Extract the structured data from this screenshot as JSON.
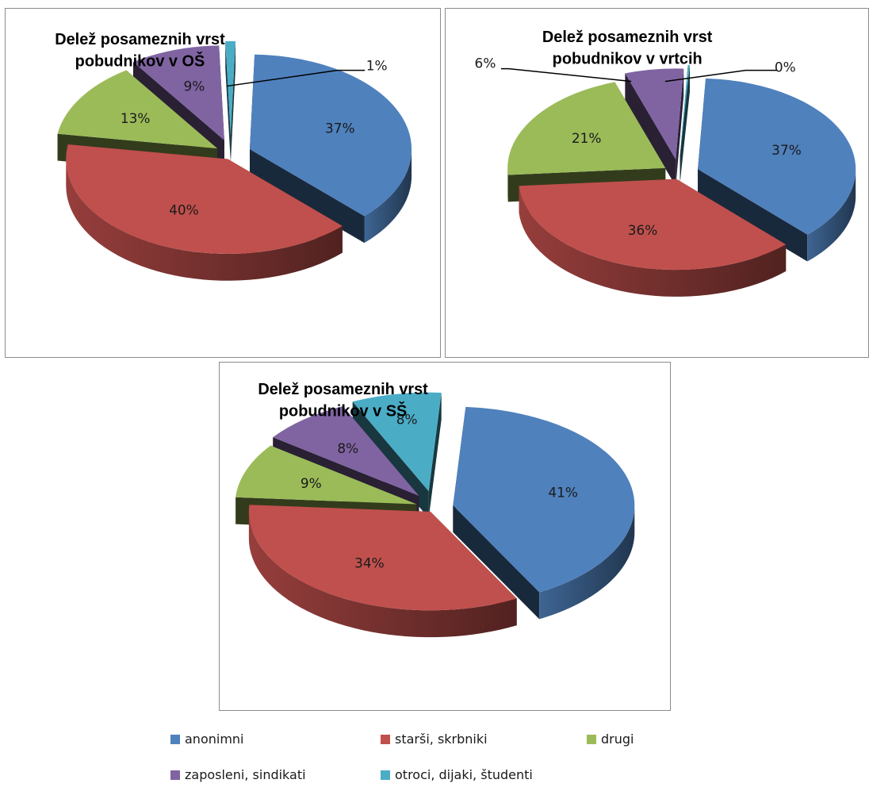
{
  "legend": [
    {
      "name": "anonimni",
      "color": "#4F81BD"
    },
    {
      "name": "starši, skrbniki",
      "color": "#C0504D"
    },
    {
      "name": "drugi",
      "color": "#9BBB59"
    },
    {
      "name": "zaposleni, sindikati",
      "color": "#8064A2"
    },
    {
      "name": "otroci, dijaki, študenti",
      "color": "#4BACC6"
    }
  ],
  "chart_data": [
    {
      "type": "pie",
      "title_lines": [
        "Delež posameznih vrst",
        "pobudnikov v OŠ"
      ],
      "categories": [
        "anonimni",
        "starši, skrbniki",
        "drugi",
        "zaposleni, sindikati",
        "otroci, dijaki, študenti"
      ],
      "values": [
        37,
        40,
        13,
        9,
        1
      ],
      "labels": [
        "37%",
        "40%",
        "13%",
        "9%",
        "1%"
      ]
    },
    {
      "type": "pie",
      "title_lines": [
        "Delež posameznih vrst",
        "pobudnikov v vrtcih"
      ],
      "categories": [
        "anonimni",
        "starši, skrbniki",
        "drugi",
        "zaposleni, sindikati",
        "otroci, dijaki, študenti"
      ],
      "values": [
        37,
        36,
        21,
        6,
        0
      ],
      "labels": [
        "37%",
        "36%",
        "21%",
        "6%",
        "0%"
      ]
    },
    {
      "type": "pie",
      "title_lines": [
        "Delež posameznih vrst",
        "pobudnikov v SŠ"
      ],
      "categories": [
        "anonimni",
        "starši, skrbniki",
        "drugi",
        "zaposleni, sindikati",
        "otroci, dijaki, študenti"
      ],
      "values": [
        41,
        34,
        9,
        8,
        8
      ],
      "labels": [
        "41%",
        "34%",
        "9%",
        "8%",
        "8%"
      ]
    }
  ]
}
